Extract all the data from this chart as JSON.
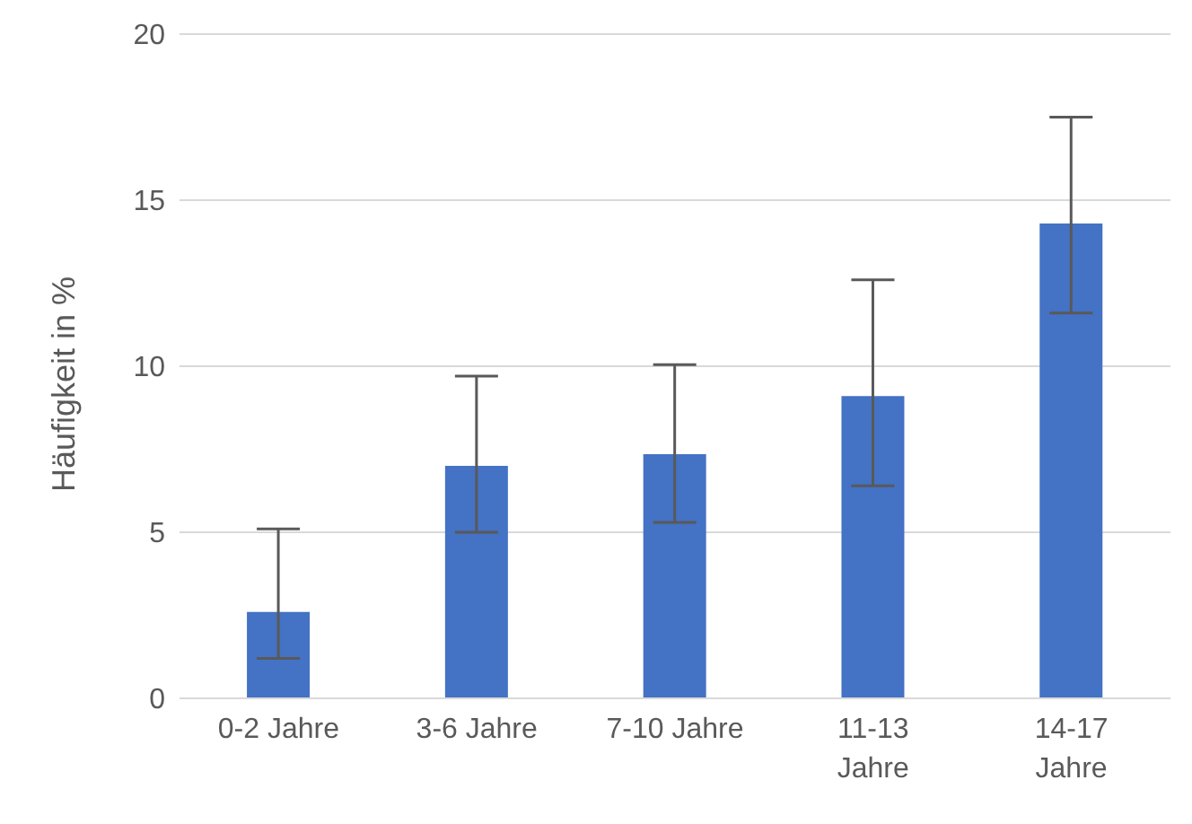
{
  "chart_data": {
    "type": "bar",
    "ylabel": "Häufigkeit in %",
    "categories": [
      "0-2 Jahre",
      "3-6 Jahre",
      "7-10 Jahre",
      "11-13 Jahre",
      "14-17 Jahre"
    ],
    "values": [
      2.6,
      7.0,
      7.35,
      9.1,
      14.3
    ],
    "errors": [
      [
        1.2,
        5.1
      ],
      [
        5.0,
        9.7
      ],
      [
        5.3,
        10.05
      ],
      [
        6.4,
        12.6
      ],
      [
        11.6,
        17.5
      ]
    ],
    "color": "#4472c4",
    "ylim": [
      0,
      20
    ],
    "yticks": [
      0,
      5,
      10,
      15,
      20
    ],
    "grid": "y"
  }
}
